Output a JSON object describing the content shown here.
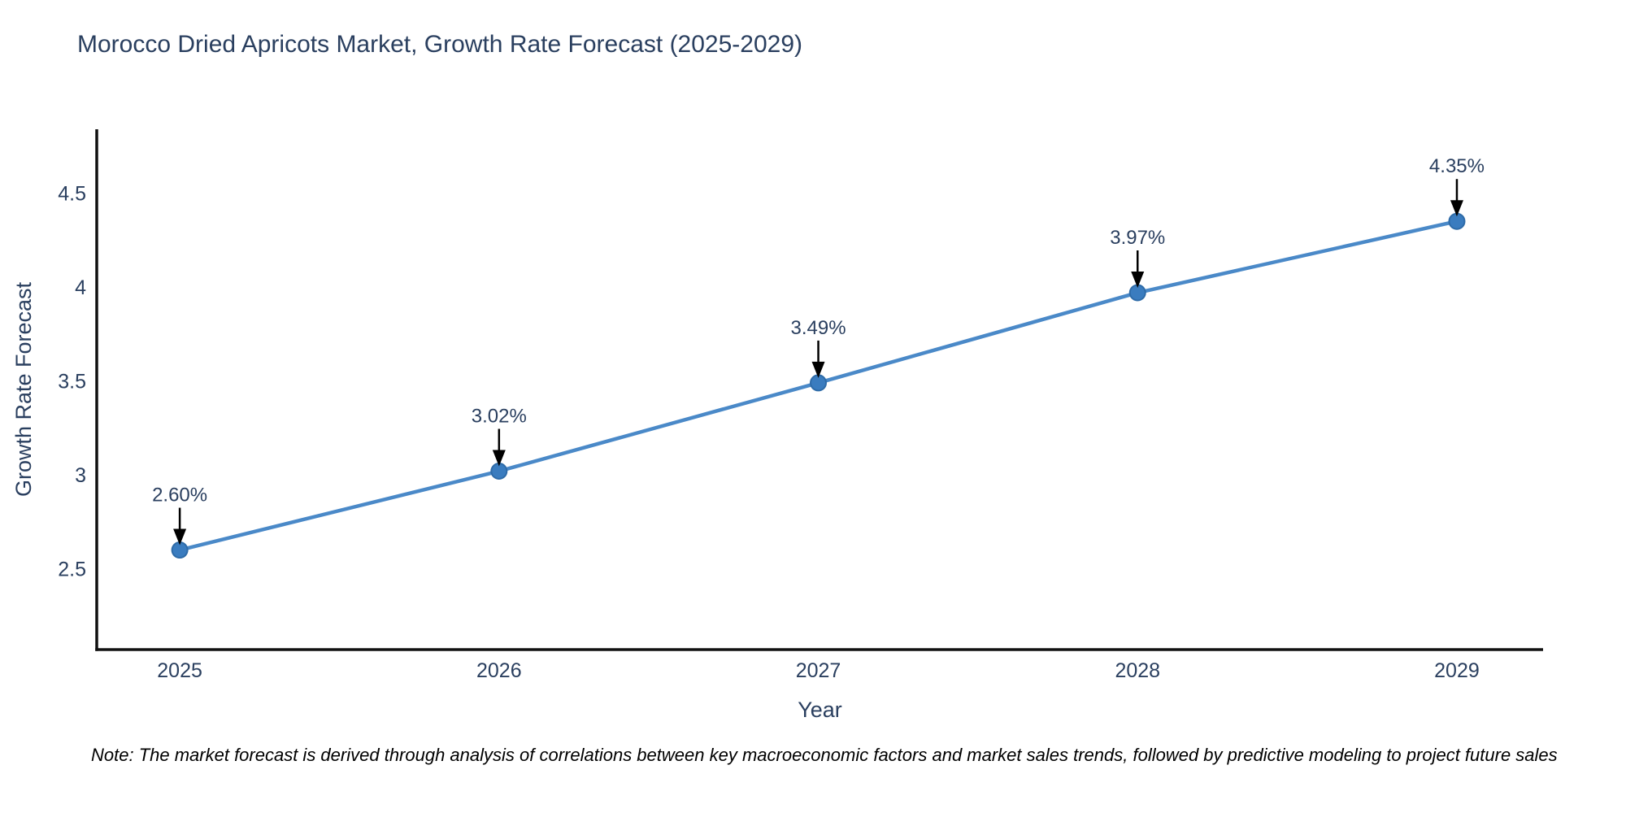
{
  "title": "Morocco Dried Apricots Market, Growth Rate Forecast (2025-2029)",
  "note": "Note: The market forecast is derived through analysis of correlations between key macroeconomic factors and market sales trends, followed by predictive modeling to project future sales",
  "chart_data": {
    "type": "line",
    "x": [
      2025,
      2026,
      2027,
      2028,
      2029
    ],
    "values": [
      2.6,
      3.02,
      3.49,
      3.97,
      4.35
    ],
    "point_labels": [
      "2.60%",
      "3.02%",
      "3.49%",
      "3.97%",
      "4.35%"
    ],
    "title": "Morocco Dried Apricots Market, Growth Rate Forecast (2025-2029)",
    "xlabel": "Year",
    "ylabel": "Growth Rate Forecast",
    "x_tick_labels": [
      "2025",
      "2026",
      "2027",
      "2028",
      "2029"
    ],
    "y_ticks": [
      2.5,
      3,
      3.5,
      4,
      4.5
    ],
    "y_tick_labels": [
      "2.5",
      "3",
      "3.5",
      "4",
      "4.5"
    ],
    "xlim": [
      2024.74,
      2029.27
    ],
    "ylim": [
      2.07,
      4.84
    ],
    "grid": false,
    "legend": "none",
    "annotations": "arrow-down-to-point",
    "colors": {
      "line": "#4a89c8",
      "marker": "#3a7cbf",
      "marker_edge": "#2e6ba8",
      "axis": "#111111",
      "text": "#2a3f5f",
      "annotation_arrow": "#000000",
      "note_text": "#000000",
      "background": "#ffffff"
    }
  }
}
